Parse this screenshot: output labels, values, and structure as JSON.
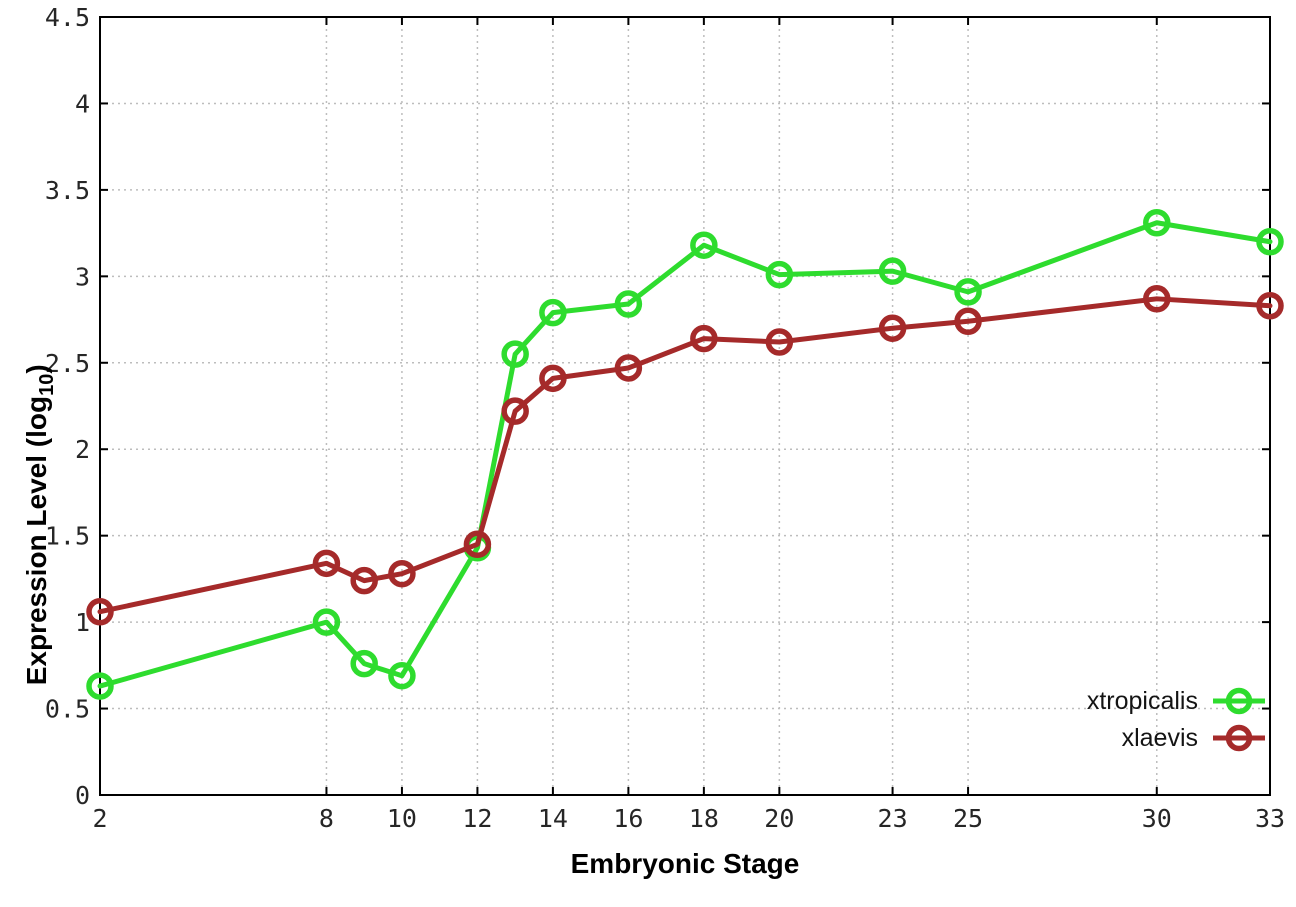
{
  "chart_data": {
    "type": "line",
    "title": "",
    "xlabel": "Embryonic Stage",
    "ylabel": "Expression Level (log10)",
    "ylabel_parts": {
      "prefix": "Expression Level (log",
      "sub": "10",
      "suffix": ")"
    },
    "x": [
      2,
      8,
      9,
      10,
      12,
      13,
      14,
      16,
      18,
      20,
      23,
      25,
      30,
      33
    ],
    "xticks": [
      2,
      8,
      10,
      12,
      14,
      16,
      18,
      20,
      23,
      25,
      30,
      33
    ],
    "ytick_labels": [
      "0",
      "0.5",
      "1",
      "1.5",
      "2",
      "2.5",
      "3",
      "3.5",
      "4",
      "4.5"
    ],
    "yticks": [
      0,
      0.5,
      1,
      1.5,
      2,
      2.5,
      3,
      3.5,
      4,
      4.5
    ],
    "xlim": [
      2,
      33
    ],
    "ylim": [
      0,
      4.5
    ],
    "grid": true,
    "grid_style": "dotted",
    "legend_position": "inside-bottom-right",
    "series": [
      {
        "name": "xtropicalis",
        "color": "#2edc2e",
        "values": [
          0.63,
          1.0,
          0.76,
          0.69,
          1.43,
          2.55,
          2.79,
          2.84,
          3.18,
          3.01,
          3.03,
          2.91,
          3.31,
          3.2
        ]
      },
      {
        "name": "xlaevis",
        "color": "#a52a2a",
        "values": [
          1.06,
          1.34,
          1.24,
          1.28,
          1.45,
          2.22,
          2.41,
          2.47,
          2.64,
          2.62,
          2.7,
          2.74,
          2.87,
          2.83
        ]
      }
    ],
    "colors": {
      "background": "#ffffff",
      "border": "#000000",
      "grid": "#bdbdbd",
      "tick_text": "#262626"
    }
  }
}
